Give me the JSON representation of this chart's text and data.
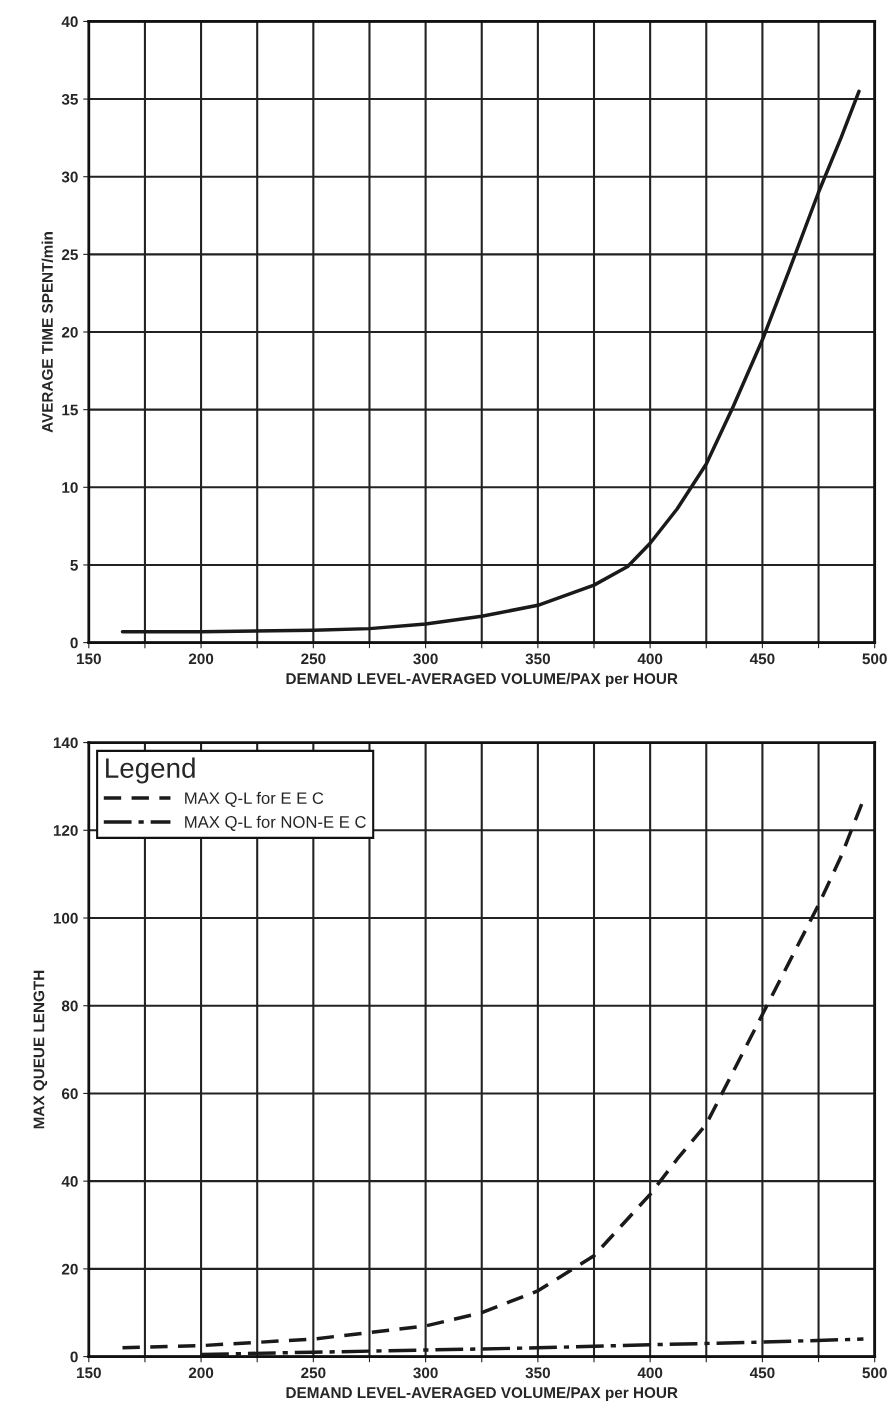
{
  "chart_data": [
    {
      "type": "line",
      "xlabel": "DEMAND LEVEL-AVERAGED VOLUME/PAX per HOUR",
      "ylabel": "AVERAGE TIME SPENT/min",
      "xlim": [
        150,
        500
      ],
      "ylim": [
        0,
        40
      ],
      "xticks": [
        150,
        {
          "value": 175,
          "label": null
        },
        200,
        {
          "value": 225,
          "label": null
        },
        250,
        {
          "value": 275,
          "label": null
        },
        300,
        {
          "value": 325,
          "label": null
        },
        350,
        {
          "value": 375,
          "label": null
        },
        400,
        {
          "value": 425,
          "label": null
        },
        450,
        {
          "value": 475,
          "label": null
        },
        500
      ],
      "yticks": [
        0,
        5,
        10,
        15,
        20,
        25,
        30,
        35,
        40
      ],
      "grid": true,
      "legend": false,
      "series": [
        {
          "color": "#1a1a1a",
          "line_style": "solid",
          "x": [
            165,
            200,
            250,
            275,
            300,
            325,
            350,
            375,
            390,
            400,
            412,
            425,
            437,
            450,
            462,
            475,
            485,
            493
          ],
          "values": [
            0.7,
            0.7,
            0.8,
            0.9,
            1.2,
            1.7,
            2.4,
            3.7,
            4.9,
            6.4,
            8.6,
            11.5,
            15.2,
            19.5,
            24.0,
            29.0,
            32.5,
            35.5
          ]
        }
      ]
    },
    {
      "type": "line",
      "xlabel": "DEMAND LEVEL-AVERAGED VOLUME/PAX per HOUR",
      "ylabel": "MAX QUEUE LENGTH",
      "legend_title": "Legend",
      "xlim": [
        150,
        500
      ],
      "ylim": [
        0,
        140
      ],
      "xticks": [
        150,
        {
          "value": 175,
          "label": null
        },
        200,
        {
          "value": 225,
          "label": null
        },
        250,
        {
          "value": 275,
          "label": null
        },
        300,
        {
          "value": 325,
          "label": null
        },
        350,
        {
          "value": 375,
          "label": null
        },
        400,
        {
          "value": 425,
          "label": null
        },
        450,
        {
          "value": 475,
          "label": null
        },
        500
      ],
      "yticks": [
        0,
        20,
        40,
        60,
        80,
        100,
        120,
        140
      ],
      "grid": true,
      "legend": "top left",
      "series": [
        {
          "name": "MAX Q-L for E E C",
          "color": "#1a1a1a",
          "line_style": "dashed",
          "x": [
            165,
            200,
            250,
            300,
            325,
            350,
            375,
            400,
            412,
            425,
            437,
            450,
            462,
            475,
            485,
            495
          ],
          "values": [
            2,
            2.5,
            4,
            7,
            10,
            15,
            23,
            37,
            45,
            53,
            65,
            78,
            90,
            103,
            114,
            127
          ]
        },
        {
          "name": "MAX Q-L for NON-E E C",
          "color": "#1a1a1a",
          "line_style": "dashdot",
          "x": [
            200,
            250,
            300,
            350,
            400,
            450,
            495
          ],
          "values": [
            0.5,
            1,
            1.5,
            2,
            2.7,
            3.3,
            4
          ]
        }
      ]
    }
  ]
}
